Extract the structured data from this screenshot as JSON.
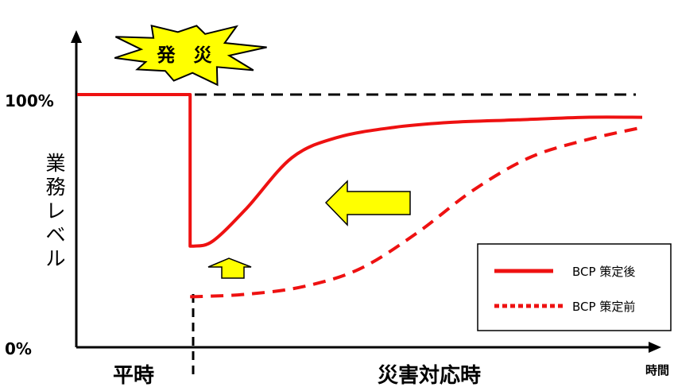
{
  "chart_data": {
    "type": "line",
    "y_axis": {
      "label": "業務レベル",
      "ticks": [
        "100%",
        "0%"
      ],
      "ylim": [
        0,
        100
      ]
    },
    "x_axis": {
      "label": "時間",
      "phases": [
        "平時",
        "災害対応時"
      ]
    },
    "event_label": "発　災",
    "series": [
      {
        "name": "BCP 策定後",
        "line_style": "solid",
        "color": "#ee1111",
        "x": [
          0,
          1,
          1,
          1.03,
          1.2,
          1.5,
          1.9,
          2.3,
          2.8,
          3.3,
          3.9,
          4.5,
          5.0
        ],
        "y": [
          100,
          100,
          40,
          40,
          42,
          55,
          75,
          83,
          87,
          89,
          90,
          91,
          91
        ]
      },
      {
        "name": "BCP 策定前",
        "line_style": "dashed",
        "color": "#ee1111",
        "x": [
          1,
          1.03,
          1.5,
          2.0,
          2.5,
          3.0,
          3.5,
          4.0,
          4.5,
          5.0
        ],
        "y": [
          20,
          20,
          21,
          24,
          31,
          45,
          62,
          75,
          82,
          87
        ]
      }
    ],
    "reference_line": {
      "y": 100,
      "style": "dashed"
    },
    "annotations": [
      {
        "type": "arrow-left",
        "color": "#ffff00",
        "meaning": "improvement-shift"
      },
      {
        "type": "arrow-up",
        "color": "#ffff00",
        "meaning": "initial-level-raise"
      }
    ],
    "legend": {
      "placement": "bottom-right"
    }
  }
}
